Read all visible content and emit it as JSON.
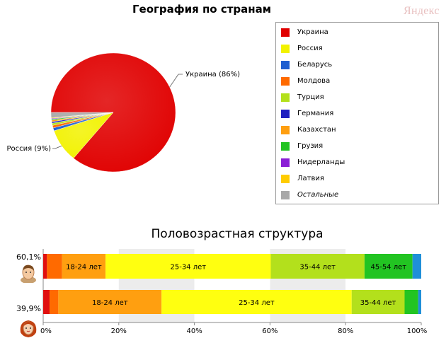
{
  "header": {
    "brand": "Яндекс"
  },
  "chart_data": [
    {
      "type": "pie",
      "title": "География по странам",
      "slices": [
        {
          "label": "Украина",
          "value": 86,
          "color": "#e00000",
          "callout": "Украина (86%)"
        },
        {
          "label": "Россия",
          "value": 9,
          "color": "#f2f200",
          "callout": "Россия (9%)"
        },
        {
          "label": "Беларусь",
          "value": 0.8,
          "color": "#1f5fd0"
        },
        {
          "label": "Молдова",
          "value": 0.7,
          "color": "#ff6a00"
        },
        {
          "label": "Турция",
          "value": 0.6,
          "color": "#b3e01c"
        },
        {
          "label": "Германия",
          "value": 0.4,
          "color": "#2020c0"
        },
        {
          "label": "Казахстан",
          "value": 0.4,
          "color": "#ff9f10"
        },
        {
          "label": "Грузия",
          "value": 0.3,
          "color": "#22c422"
        },
        {
          "label": "Нидерланды",
          "value": 0.2,
          "color": "#8a1fd6"
        },
        {
          "label": "Латвия",
          "value": 0.2,
          "color": "#ffcc00"
        },
        {
          "label": "Остальные",
          "value": 1.4,
          "color": "#a8a8a8",
          "italic": true
        }
      ]
    },
    {
      "type": "bar",
      "orientation": "horizontal-stacked",
      "title": "Половозрастная структура",
      "xlim": [
        0,
        100
      ],
      "xticks": [
        "0%",
        "20%",
        "40%",
        "60%",
        "80%",
        "100%"
      ],
      "grid": true,
      "series": [
        {
          "name": "male",
          "share": "60,1%",
          "segments": [
            {
              "label": "",
              "value": 1,
              "color": "#e01010"
            },
            {
              "label": "",
              "value": 4,
              "color": "#ff6a00"
            },
            {
              "label": "18-24 лет",
              "value": 11.5,
              "color": "#ff9f10"
            },
            {
              "label": "25-34 лет",
              "value": 43.7,
              "color": "#ffff10"
            },
            {
              "label": "35-44 лет",
              "value": 24.8,
              "color": "#b3e01c"
            },
            {
              "label": "45-54 лет",
              "value": 12.7,
              "color": "#22c422"
            },
            {
              "label": "",
              "value": 2.3,
              "color": "#1f8fd8"
            }
          ]
        },
        {
          "name": "female",
          "share": "39,9%",
          "segments": [
            {
              "label": "",
              "value": 1.7,
              "color": "#e01010"
            },
            {
              "label": "",
              "value": 2.3,
              "color": "#ff6a00"
            },
            {
              "label": "18-24 лет",
              "value": 27.3,
              "color": "#ff9f10"
            },
            {
              "label": "25-34 лет",
              "value": 50.3,
              "color": "#ffff10"
            },
            {
              "label": "35-44 лет",
              "value": 14,
              "color": "#b3e01c"
            },
            {
              "label": "",
              "value": 3.6,
              "color": "#22c422"
            },
            {
              "label": "",
              "value": 0.8,
              "color": "#1f8fd8"
            }
          ]
        }
      ]
    }
  ]
}
